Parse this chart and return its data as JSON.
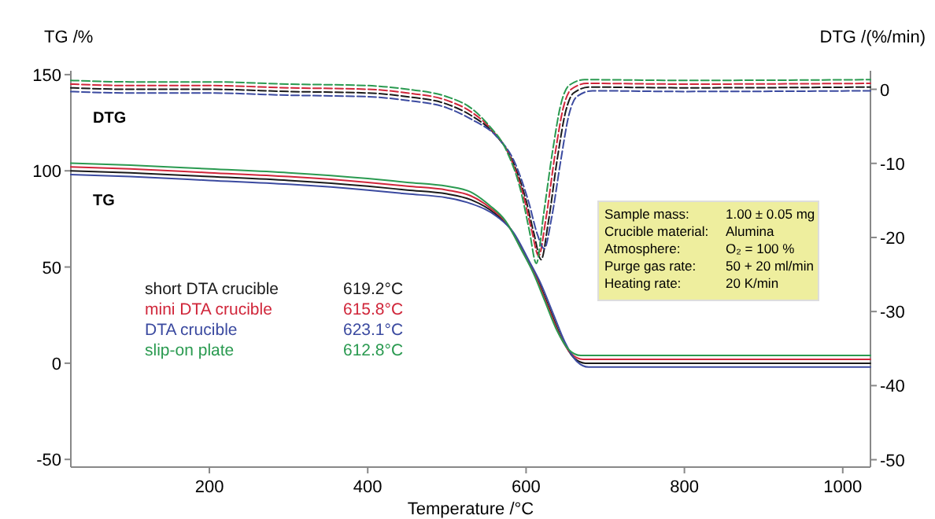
{
  "chart_data": {
    "type": "line",
    "xlabel": "Temperature /°C",
    "ylabel": "TG /%",
    "y2label": "DTG /(%/min)",
    "xlim": [
      25,
      1035
    ],
    "xticks": [
      200,
      400,
      600,
      800,
      1000
    ],
    "ylim": [
      -54,
      152
    ],
    "yticks": [
      -50,
      0,
      50,
      100,
      150
    ],
    "y2lim": [
      -51,
      2.5
    ],
    "y2ticks": [
      -50,
      -40,
      -30,
      -20,
      -10,
      0
    ],
    "grid": false,
    "legend": "left",
    "marker": "none",
    "series": [
      {
        "name": "short DTA crucible",
        "color": "#1a1a1a",
        "line_style": "solid",
        "x": [
          25,
          100,
          200,
          300,
          400,
          450,
          500,
          530,
          560,
          580,
          600,
          615,
          630,
          645,
          660,
          675,
          700,
          800,
          900,
          1035
        ],
        "values": [
          100,
          99,
          97,
          95,
          92,
          90,
          88,
          85,
          78,
          70,
          55,
          43,
          28,
          13,
          3,
          0,
          0,
          0,
          0,
          0
        ]
      },
      {
        "name": "mini DTA crucible",
        "color": "#d0263a",
        "line_style": "solid",
        "x": [
          25,
          100,
          200,
          300,
          400,
          450,
          500,
          530,
          557,
          577,
          597,
          612,
          627,
          642,
          657,
          672,
          700,
          800,
          900,
          1035
        ],
        "values": [
          102,
          101,
          99,
          97,
          94,
          92,
          90,
          87,
          80,
          72,
          57,
          45,
          30,
          15,
          5,
          2,
          2,
          2,
          2,
          2
        ]
      },
      {
        "name": "DTA crucible",
        "color": "#3b4aa0",
        "line_style": "solid",
        "x": [
          25,
          100,
          200,
          300,
          400,
          450,
          500,
          530,
          564,
          584,
          604,
          619,
          634,
          649,
          664,
          679,
          700,
          800,
          900,
          1035
        ],
        "values": [
          98,
          97,
          95,
          93,
          90,
          88,
          86,
          83,
          76,
          68,
          53,
          41,
          26,
          11,
          1,
          -2,
          -2,
          -2,
          -2,
          -2
        ]
      },
      {
        "name": "slip-on plate",
        "color": "#2a9a50",
        "line_style": "solid",
        "x": [
          25,
          100,
          200,
          300,
          400,
          450,
          500,
          530,
          554,
          574,
          594,
          609,
          624,
          639,
          654,
          669,
          700,
          800,
          900,
          1035
        ],
        "values": [
          104,
          103,
          101,
          99,
          96,
          94,
          92,
          89,
          82,
          74,
          59,
          47,
          32,
          17,
          7,
          4,
          4,
          4,
          4,
          4
        ]
      },
      {
        "color": "#1a1a1a",
        "axis": "y2",
        "line_style": "dashed",
        "x": [
          25,
          100,
          200,
          300,
          400,
          450,
          500,
          530,
          560,
          580,
          600,
          610,
          619,
          628,
          640,
          650,
          660,
          680,
          800,
          1035
        ],
        "values": [
          0.2,
          0,
          0,
          -0.3,
          -0.5,
          -1,
          -2,
          -3.5,
          -6,
          -9,
          -15,
          -19.5,
          -23,
          -18,
          -9,
          -3,
          -0.5,
          0.3,
          0.2,
          0.3
        ]
      },
      {
        "color": "#d0263a",
        "axis": "y2",
        "line_style": "dashed",
        "x": [
          25,
          100,
          200,
          300,
          400,
          450,
          500,
          530,
          557,
          577,
          597,
          607,
          616,
          625,
          637,
          647,
          657,
          677,
          800,
          1035
        ],
        "values": [
          0.7,
          0.5,
          0.5,
          0.2,
          0,
          -0.5,
          -1.5,
          -3,
          -5.5,
          -8.5,
          -14.5,
          -19,
          -22.5,
          -17.5,
          -8.5,
          -2.5,
          0,
          0.8,
          0.7,
          0.8
        ]
      },
      {
        "color": "#3b4aa0",
        "axis": "y2",
        "line_style": "dashed",
        "x": [
          25,
          100,
          200,
          300,
          400,
          450,
          500,
          530,
          564,
          584,
          604,
          614,
          623,
          632,
          644,
          654,
          664,
          684,
          800,
          1035
        ],
        "values": [
          -0.3,
          -0.5,
          -0.5,
          -0.8,
          -1,
          -1.5,
          -2.5,
          -4,
          -6.5,
          -9.5,
          -15.5,
          -19.5,
          -21.5,
          -17.5,
          -9.5,
          -3.5,
          -1,
          -0.2,
          -0.3,
          -0.2
        ]
      },
      {
        "color": "#2a9a50",
        "axis": "y2",
        "line_style": "dashed",
        "x": [
          25,
          100,
          200,
          300,
          400,
          450,
          500,
          530,
          554,
          574,
          594,
          604,
          613,
          622,
          634,
          644,
          654,
          674,
          800,
          1035
        ],
        "values": [
          1.2,
          1,
          1,
          0.7,
          0.5,
          0,
          -1,
          -2.5,
          -5,
          -8,
          -14,
          -19,
          -23.5,
          -17,
          -8,
          -2,
          0.5,
          1.3,
          1.2,
          1.3
        ]
      }
    ],
    "annotations": [
      "619.2°C",
      "615.8°C",
      "623.1°C",
      "612.8°C",
      "DTG",
      "TG",
      "Sample mass: 1.00 ± 0.05 mg",
      "Crucible material: Alumina",
      "Atmosphere: O₂ = 100 %",
      "Purge gas rate: 50 + 20 ml/min",
      "Heating rate: 20 K/min"
    ]
  }
}
